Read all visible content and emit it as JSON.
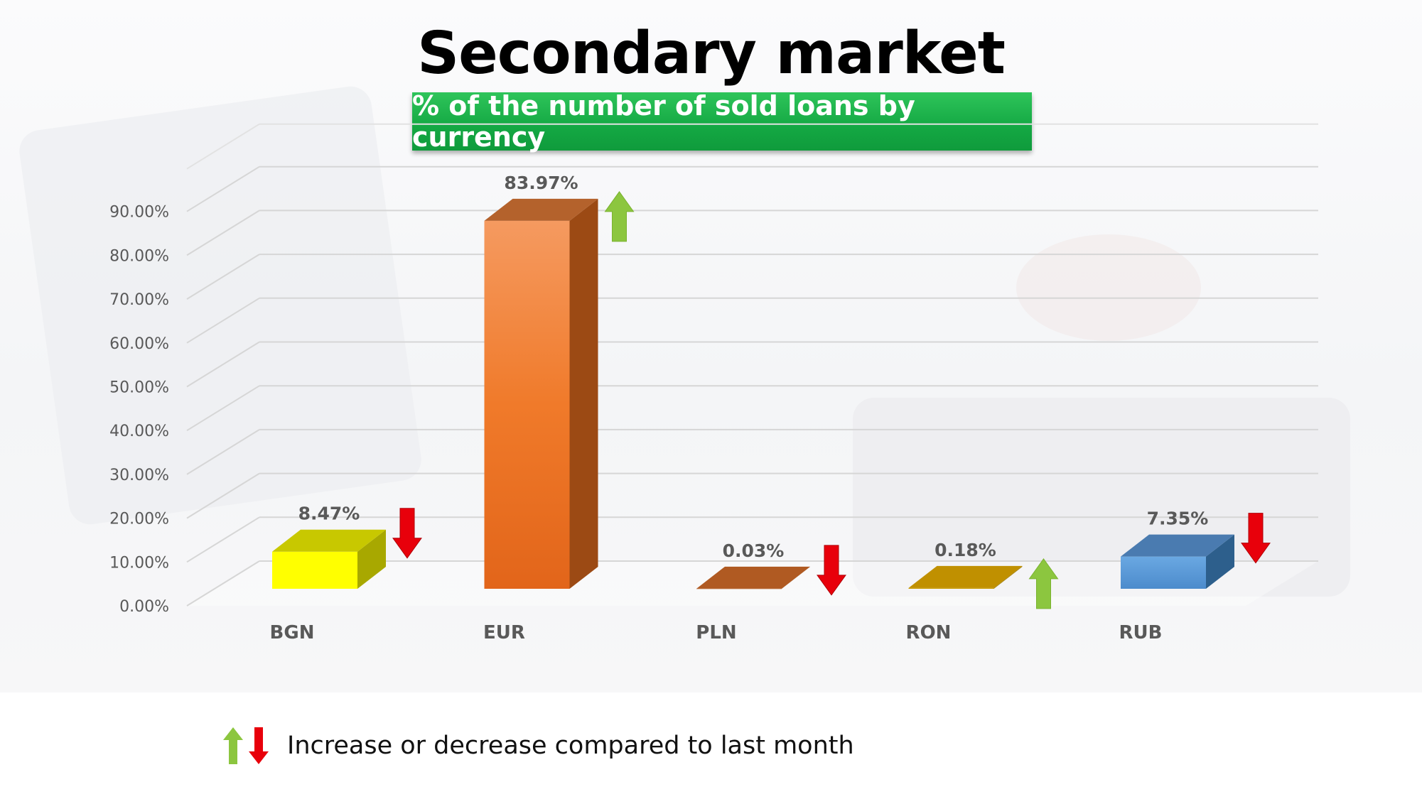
{
  "title": "Secondary market",
  "subtitle": "% of the number of sold loans by currency",
  "legend_text": "Increase or decrease compared to last month",
  "colors": {
    "accent": "#14a843",
    "up_arrow": "#8cc63f",
    "down_arrow": "#e8000b"
  },
  "chart_data": {
    "type": "bar",
    "title": "Secondary market",
    "subtitle": "% of the number of sold loans by currency",
    "categories": [
      "BGN",
      "EUR",
      "PLN",
      "RON",
      "RUB"
    ],
    "values": [
      8.47,
      83.97,
      0.03,
      0.18,
      7.35
    ],
    "value_labels": [
      "8.47%",
      "83.97%",
      "0.03%",
      "0.18%",
      "7.35%"
    ],
    "trend": [
      "down",
      "up",
      "down",
      "up",
      "down"
    ],
    "bar_colors": [
      "#ffff00",
      "#f07f2e",
      "#b5632a",
      "#c89b00",
      "#5b9bd5"
    ],
    "ylim": [
      0,
      90
    ],
    "yticks": [
      0,
      10,
      20,
      30,
      40,
      50,
      60,
      70,
      80,
      90
    ],
    "ytick_labels": [
      "0.00%",
      "10.00%",
      "20.00%",
      "30.00%",
      "40.00%",
      "50.00%",
      "60.00%",
      "70.00%",
      "80.00%",
      "90.00%"
    ],
    "grid": true,
    "three_d": true
  }
}
